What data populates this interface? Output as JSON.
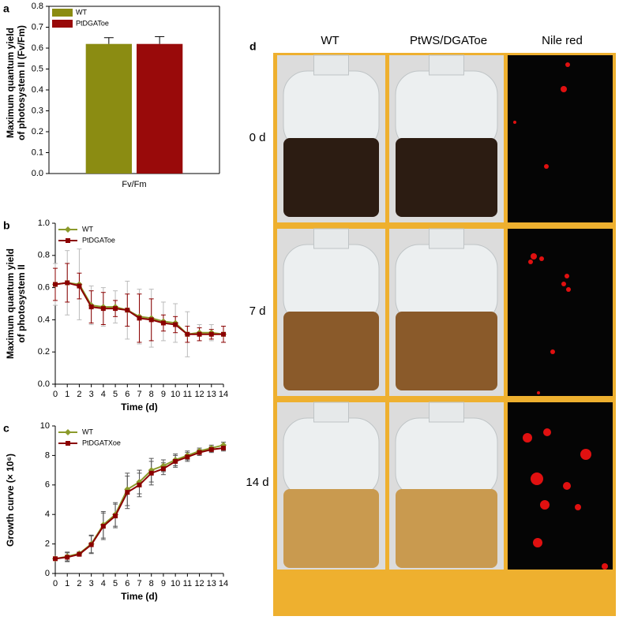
{
  "chart_data": [
    {
      "type": "bar",
      "panel": "a",
      "ylabel": [
        "Maximum quantum yield",
        "of photosystem II (Fv/Fm)"
      ],
      "categories": [
        "Fv/Fm"
      ],
      "series": [
        {
          "name": "WT",
          "color": "#8b8c12",
          "values": [
            0.62
          ],
          "errors": [
            0.03
          ]
        },
        {
          "name": "PtDGAToe",
          "color": "#990a0a",
          "values": [
            0.62
          ],
          "errors": [
            0.035
          ]
        }
      ],
      "ylim": [
        0,
        0.8
      ],
      "yticks": [
        {
          "value": 0,
          "label": "0.0"
        },
        0.1,
        0.2,
        0.3,
        0.4,
        0.5,
        0.6,
        0.7,
        0.8
      ]
    },
    {
      "type": "line",
      "panel": "b",
      "ylabel": [
        "Maximum quantum yield",
        "of photosystem II"
      ],
      "xlabel": "Time (d)",
      "x": [
        0,
        1,
        2,
        3,
        4,
        5,
        6,
        7,
        8,
        9,
        10,
        11,
        12,
        13,
        14
      ],
      "series": [
        {
          "name": "WT",
          "color": "#8b9a2b",
          "marker": "diamond",
          "values": [
            0.62,
            0.63,
            0.62,
            0.49,
            0.48,
            0.48,
            0.46,
            0.42,
            0.41,
            0.39,
            0.38,
            0.31,
            0.32,
            0.32,
            0.31
          ],
          "errors": [
            0.13,
            0.2,
            0.22,
            0.12,
            0.12,
            0.1,
            0.18,
            0.17,
            0.18,
            0.12,
            0.12,
            0.14,
            0.05,
            0.05,
            0.05
          ],
          "error_color": "#bbbbbb"
        },
        {
          "name": "PtDGAToe",
          "color": "#8b0000",
          "marker": "square",
          "values": [
            0.62,
            0.63,
            0.61,
            0.48,
            0.47,
            0.47,
            0.46,
            0.41,
            0.4,
            0.38,
            0.37,
            0.31,
            0.31,
            0.31,
            0.31
          ],
          "errors": [
            0.1,
            0.12,
            0.08,
            0.1,
            0.1,
            0.05,
            0.1,
            0.15,
            0.13,
            0.05,
            0.05,
            0.05,
            0.04,
            0.03,
            0.05
          ],
          "error_color": "#8b0000"
        }
      ],
      "xlim": [
        0,
        14
      ],
      "xticks": [
        0,
        1,
        2,
        3,
        4,
        5,
        6,
        7,
        8,
        9,
        10,
        11,
        12,
        13,
        14
      ],
      "ylim": [
        0,
        1
      ],
      "yticks": [
        {
          "value": 0,
          "label": "0.0"
        },
        0.2,
        0.4,
        0.6,
        0.8,
        {
          "value": 1,
          "label": "1.0"
        }
      ]
    },
    {
      "type": "line",
      "panel": "c",
      "ylabel": [
        "Growth curve (× 10⁶)"
      ],
      "xlabel": "Time (d)",
      "x": [
        0,
        1,
        2,
        3,
        4,
        5,
        6,
        7,
        8,
        9,
        10,
        11,
        12,
        13,
        14
      ],
      "series": [
        {
          "name": "WT",
          "color": "#8b9a2b",
          "marker": "diamond",
          "values": [
            1.0,
            1.15,
            1.35,
            2.0,
            3.3,
            4.0,
            5.7,
            6.2,
            7.0,
            7.3,
            7.7,
            8.0,
            8.3,
            8.5,
            8.7
          ],
          "errors": [
            0.1,
            0.3,
            0.1,
            0.6,
            0.9,
            0.8,
            1.1,
            0.8,
            0.8,
            0.4,
            0.4,
            0.3,
            0.2,
            0.2,
            0.2
          ],
          "error_color": "#555555"
        },
        {
          "name": "PtDGATXoe",
          "color": "#8b0000",
          "marker": "square",
          "values": [
            1.0,
            1.1,
            1.3,
            1.95,
            3.2,
            3.9,
            5.5,
            6.0,
            6.8,
            7.1,
            7.6,
            7.9,
            8.2,
            8.4,
            8.5
          ],
          "errors": [
            0.1,
            0.3,
            0.1,
            0.6,
            0.9,
            0.8,
            1.1,
            0.8,
            0.8,
            0.4,
            0.4,
            0.3,
            0.2,
            0.2,
            0.2
          ],
          "error_color": "#555555"
        }
      ],
      "xlim": [
        0,
        14
      ],
      "xticks": [
        0,
        1,
        2,
        3,
        4,
        5,
        6,
        7,
        8,
        9,
        10,
        11,
        12,
        13,
        14
      ],
      "ylim": [
        0,
        10
      ],
      "yticks": [
        0,
        2,
        4,
        6,
        8,
        10
      ]
    }
  ],
  "panel_d": {
    "label": "d",
    "columns": [
      "WT",
      "PtWS/DGAToe",
      "Nile red"
    ],
    "rows": [
      "0 d",
      "7 d",
      "14 d"
    ]
  }
}
